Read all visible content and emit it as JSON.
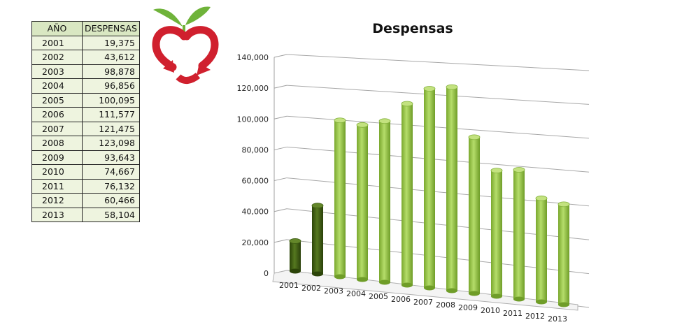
{
  "table": {
    "headers": [
      "AÑO",
      "DESPENSAS"
    ],
    "rows": [
      [
        "2001",
        "19,375"
      ],
      [
        "2002",
        "43,612"
      ],
      [
        "2003",
        "98,878"
      ],
      [
        "2004",
        "96,856"
      ],
      [
        "2005",
        "100,095"
      ],
      [
        "2006",
        "111,577"
      ],
      [
        "2007",
        "121,475"
      ],
      [
        "2008",
        "123,098"
      ],
      [
        "2009",
        "93,643"
      ],
      [
        "2010",
        "74,667"
      ],
      [
        "2011",
        "76,132"
      ],
      [
        "2012",
        "60,466"
      ],
      [
        "2013",
        "58,104"
      ]
    ]
  },
  "logo": {
    "icon": "apple-heart-recycle-icon",
    "colors": {
      "red": "#d0202e",
      "leaf": "#6fb33a"
    }
  },
  "chart_data": {
    "type": "bar",
    "style": "3d-cylinder",
    "title": "Despensas",
    "categories": [
      "2001",
      "2002",
      "2003",
      "2004",
      "2005",
      "2006",
      "2007",
      "2008",
      "2009",
      "2010",
      "2011",
      "2012",
      "2013"
    ],
    "values": [
      19375,
      43612,
      98878,
      96856,
      100095,
      111577,
      121475,
      123098,
      93643,
      74667,
      76132,
      60466,
      58104
    ],
    "ylim": [
      0,
      140000
    ],
    "yticks": [
      "0",
      "20,000",
      "40,000",
      "60,000",
      "80,000",
      "100,000",
      "120,000",
      "140,000"
    ],
    "grid": true,
    "colors": {
      "dark": "#3f5f14",
      "light": "#93c23f"
    },
    "xlabel": "",
    "ylabel": ""
  }
}
